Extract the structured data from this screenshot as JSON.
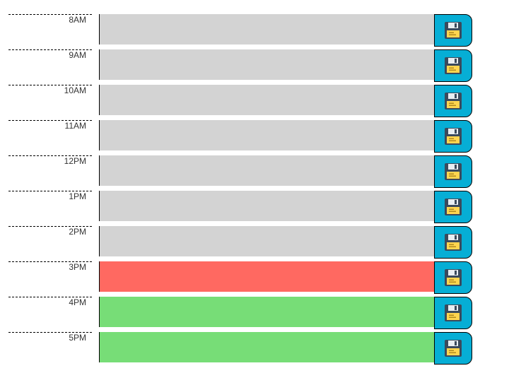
{
  "colors": {
    "past": "#d3d3d3",
    "present": "#ff6961",
    "future": "#77dd77",
    "save_button": "#06aed5"
  },
  "time_blocks": [
    {
      "hour": "8AM",
      "state": "past",
      "text": "",
      "icon": "floppy-disk-icon"
    },
    {
      "hour": "9AM",
      "state": "past",
      "text": "",
      "icon": "floppy-disk-icon"
    },
    {
      "hour": "10AM",
      "state": "past",
      "text": "",
      "icon": "floppy-disk-icon"
    },
    {
      "hour": "11AM",
      "state": "past",
      "text": "",
      "icon": "floppy-disk-icon"
    },
    {
      "hour": "12PM",
      "state": "past",
      "text": "",
      "icon": "floppy-disk-icon"
    },
    {
      "hour": "1PM",
      "state": "past",
      "text": "",
      "icon": "floppy-disk-icon"
    },
    {
      "hour": "2PM",
      "state": "past",
      "text": "",
      "icon": "floppy-disk-icon"
    },
    {
      "hour": "3PM",
      "state": "present",
      "text": "",
      "icon": "floppy-disk-icon"
    },
    {
      "hour": "4PM",
      "state": "future",
      "text": "",
      "icon": "floppy-disk-icon"
    },
    {
      "hour": "5PM",
      "state": "future",
      "text": "",
      "icon": "floppy-disk-icon"
    }
  ]
}
